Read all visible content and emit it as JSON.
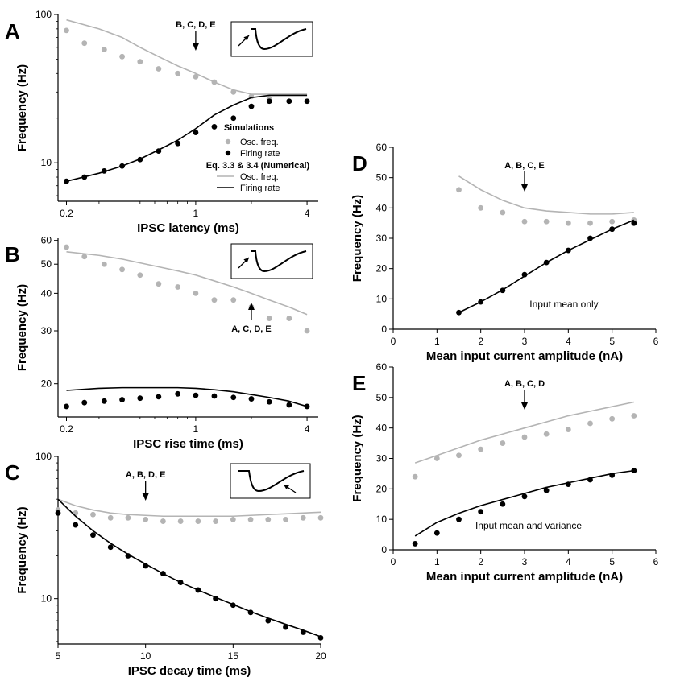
{
  "chart_data": [
    {
      "panel": "A",
      "type": "scatter",
      "xlabel": "IPSC latency (ms)",
      "ylabel": "Frequency (Hz)",
      "xscale": "log",
      "yscale": "log",
      "xlim": [
        0.18,
        4.6
      ],
      "ylim": [
        5.5,
        100
      ],
      "xticks": [
        0.2,
        1,
        4
      ],
      "xtick_labels": [
        "0.2",
        "1",
        "4"
      ],
      "yticks": [
        10,
        100
      ],
      "ytick_labels": [
        "10",
        "100"
      ],
      "annotation": "B, C, D, E",
      "annotation_x": 1.0,
      "inset": "arrow-rise",
      "legend": {
        "position": "lower-right",
        "sim_header": "Simulations",
        "eq_header": "Eq. 3.3 & 3.4 (Numerical)",
        "entries": [
          "Osc. freq.",
          "Firing rate",
          "Osc. freq.",
          "Firing rate"
        ]
      },
      "series": [
        {
          "name": "Osc. freq.",
          "kind": "simulation",
          "color": "#b4b4b4",
          "x": [
            0.2,
            0.25,
            0.32,
            0.4,
            0.5,
            0.63,
            0.8,
            1.0,
            1.26,
            1.6,
            2.0,
            2.5,
            3.2,
            4.0
          ],
          "y": [
            78,
            64,
            58,
            52,
            48,
            43,
            40,
            38,
            35,
            30,
            28,
            27,
            26,
            26
          ]
        },
        {
          "name": "Firing rate",
          "kind": "simulation",
          "color": "#000000",
          "x": [
            0.2,
            0.25,
            0.32,
            0.4,
            0.5,
            0.63,
            0.8,
            1.0,
            1.26,
            1.6,
            2.0,
            2.5,
            3.2,
            4.0
          ],
          "y": [
            7.5,
            8.0,
            8.8,
            9.5,
            10.5,
            12.0,
            13.5,
            16.0,
            17.5,
            20.0,
            24.0,
            26.0,
            26.0,
            26.0
          ]
        },
        {
          "name": "Osc. freq.",
          "kind": "theory",
          "color": "#b4b4b4",
          "x": [
            0.2,
            0.3,
            0.4,
            0.5,
            0.63,
            0.8,
            1.0,
            1.26,
            1.6,
            2.0,
            2.5,
            3.2,
            4.0
          ],
          "y": [
            92,
            80,
            70,
            60,
            52,
            45,
            40,
            35,
            31,
            29,
            29,
            29,
            29
          ]
        },
        {
          "name": "Firing rate",
          "kind": "theory",
          "color": "#000000",
          "x": [
            0.2,
            0.3,
            0.4,
            0.5,
            0.63,
            0.8,
            1.0,
            1.26,
            1.6,
            2.0,
            2.5,
            3.2,
            4.0
          ],
          "y": [
            7.5,
            8.5,
            9.5,
            10.6,
            12.2,
            14.2,
            17.0,
            21.0,
            24.5,
            27.5,
            28.5,
            28.5,
            28.5
          ]
        }
      ]
    },
    {
      "panel": "B",
      "type": "scatter",
      "xlabel": "IPSC rise time (ms)",
      "ylabel": "Frequency (Hz)",
      "xscale": "log",
      "yscale": "log",
      "xlim": [
        0.18,
        4.6
      ],
      "ylim": [
        15.5,
        61
      ],
      "xticks": [
        0.2,
        1,
        4
      ],
      "xtick_labels": [
        "0.2",
        "1",
        "4"
      ],
      "yticks": [
        20,
        30,
        40,
        50,
        60
      ],
      "ytick_labels": [
        "20",
        "30",
        "40",
        "50",
        "60"
      ],
      "annotation": "A, C, D, E",
      "annotation_x": 2.0,
      "inset": "arrow-rise",
      "series": [
        {
          "name": "Osc. freq.",
          "kind": "simulation",
          "color": "#b4b4b4",
          "x": [
            0.2,
            0.25,
            0.32,
            0.4,
            0.5,
            0.63,
            0.8,
            1.0,
            1.26,
            1.6,
            2.0,
            2.5,
            3.2,
            4.0
          ],
          "y": [
            57,
            53,
            50,
            48,
            46,
            43,
            42,
            40,
            38,
            38,
            36,
            33,
            33,
            30
          ]
        },
        {
          "name": "Firing rate",
          "kind": "simulation",
          "color": "#000000",
          "x": [
            0.2,
            0.25,
            0.32,
            0.4,
            0.5,
            0.63,
            0.8,
            1.0,
            1.26,
            1.6,
            2.0,
            2.5,
            3.2,
            4.0
          ],
          "y": [
            16.8,
            17.3,
            17.5,
            17.7,
            17.9,
            18.1,
            18.5,
            18.3,
            18.2,
            18.0,
            17.8,
            17.4,
            17.0,
            16.8
          ]
        },
        {
          "name": "Osc. freq.",
          "kind": "theory",
          "color": "#b4b4b4",
          "x": [
            0.2,
            0.3,
            0.4,
            0.5,
            0.63,
            0.8,
            1.0,
            1.26,
            1.6,
            2.0,
            2.5,
            3.2,
            4.0
          ],
          "y": [
            55,
            53.5,
            52,
            50.5,
            49,
            47.5,
            46,
            44,
            42,
            40,
            38,
            36,
            34
          ]
        },
        {
          "name": "Firing rate",
          "kind": "theory",
          "color": "#000000",
          "x": [
            0.2,
            0.3,
            0.4,
            0.5,
            0.63,
            0.8,
            1.0,
            1.26,
            1.6,
            2.0,
            2.5,
            3.2,
            4.0
          ],
          "y": [
            19.0,
            19.3,
            19.4,
            19.4,
            19.4,
            19.4,
            19.3,
            19.1,
            18.8,
            18.4,
            18.0,
            17.5,
            16.8
          ]
        }
      ]
    },
    {
      "panel": "C",
      "type": "scatter",
      "xlabel": "IPSC decay time (ms)",
      "ylabel": "Frequency (Hz)",
      "xscale": "linear",
      "yscale": "log",
      "xlim": [
        5,
        20
      ],
      "ylim": [
        4.8,
        100
      ],
      "xticks": [
        5,
        10,
        15,
        20
      ],
      "xtick_labels": [
        "5",
        "10",
        "15",
        "20"
      ],
      "yticks": [
        10,
        100
      ],
      "ytick_labels": [
        "10",
        "100"
      ],
      "annotation": "A, B, D, E",
      "annotation_x": 10,
      "inset": "arrow-decay",
      "series": [
        {
          "name": "Osc. freq.",
          "kind": "simulation",
          "color": "#b4b4b4",
          "x": [
            5,
            6,
            7,
            8,
            9,
            10,
            11,
            12,
            13,
            14,
            15,
            16,
            17,
            18,
            19,
            20
          ],
          "y": [
            42,
            40,
            39,
            37,
            37,
            36,
            35,
            35,
            35,
            35,
            36,
            36,
            36,
            36,
            37,
            37
          ]
        },
        {
          "name": "Firing rate",
          "kind": "simulation",
          "color": "#000000",
          "x": [
            5,
            6,
            7,
            8,
            9,
            10,
            11,
            12,
            13,
            14,
            15,
            16,
            17,
            18,
            19,
            20
          ],
          "y": [
            40,
            33,
            28,
            23,
            20,
            17,
            15,
            13,
            11.5,
            10,
            9,
            8,
            7,
            6.3,
            5.8,
            5.3
          ]
        },
        {
          "name": "Osc. freq.",
          "kind": "theory",
          "color": "#b4b4b4",
          "x": [
            5,
            6,
            7,
            8,
            9,
            10,
            11,
            12,
            13,
            14,
            15,
            16,
            17,
            18,
            19,
            20
          ],
          "y": [
            50,
            45,
            42,
            40,
            39,
            38.5,
            38,
            38,
            38,
            38,
            38,
            38.5,
            39,
            39.5,
            40,
            40.5
          ]
        },
        {
          "name": "Firing rate",
          "kind": "theory",
          "color": "#000000",
          "x": [
            5,
            6,
            7,
            8,
            9,
            10,
            11,
            12,
            13,
            14,
            15,
            16,
            17,
            18,
            19,
            20
          ],
          "y": [
            50,
            38,
            30,
            24.5,
            20.5,
            17.5,
            15,
            13,
            11.5,
            10.2,
            9.1,
            8.1,
            7.3,
            6.6,
            6.0,
            5.4
          ]
        }
      ]
    },
    {
      "panel": "D",
      "type": "scatter",
      "xlabel": "Mean input current amplitude (nA)",
      "ylabel": "Frequency (Hz)",
      "xscale": "linear",
      "yscale": "linear",
      "xlim": [
        0,
        6
      ],
      "ylim": [
        0,
        60
      ],
      "xticks": [
        0,
        1,
        2,
        3,
        4,
        5,
        6
      ],
      "xtick_labels": [
        "0",
        "1",
        "2",
        "3",
        "4",
        "5",
        "6"
      ],
      "yticks": [
        0,
        10,
        20,
        30,
        40,
        50,
        60
      ],
      "ytick_labels": [
        "0",
        "10",
        "20",
        "30",
        "40",
        "50",
        "60"
      ],
      "annotation": "A, B, C, E",
      "annotation_x": 3,
      "note": "Input mean only",
      "series": [
        {
          "name": "Osc. freq.",
          "kind": "simulation",
          "color": "#b4b4b4",
          "x": [
            1.5,
            2.0,
            2.5,
            3.0,
            3.5,
            4.0,
            4.5,
            5.0,
            5.5
          ],
          "y": [
            46,
            40,
            38.5,
            35.5,
            35.5,
            35,
            35,
            35.5,
            36
          ]
        },
        {
          "name": "Firing rate",
          "kind": "simulation",
          "color": "#000000",
          "x": [
            1.5,
            2.0,
            2.5,
            3.0,
            3.5,
            4.0,
            4.5,
            5.0,
            5.5
          ],
          "y": [
            5.5,
            9,
            12.8,
            18,
            22,
            26,
            30,
            33,
            35
          ]
        },
        {
          "name": "Osc. freq.",
          "kind": "theory",
          "color": "#b4b4b4",
          "x": [
            1.5,
            2.0,
            2.5,
            3.0,
            3.5,
            4.0,
            4.5,
            5.0,
            5.5
          ],
          "y": [
            50.5,
            46,
            42.5,
            40,
            39,
            38.5,
            38,
            38,
            38.5
          ]
        },
        {
          "name": "Firing rate",
          "kind": "theory",
          "color": "#000000",
          "x": [
            1.5,
            2.0,
            2.5,
            3.0,
            3.5,
            4.0,
            4.5,
            5.0,
            5.5
          ],
          "y": [
            5.5,
            9,
            13,
            17.5,
            22,
            26,
            29.5,
            33,
            36
          ]
        }
      ]
    },
    {
      "panel": "E",
      "type": "scatter",
      "xlabel": "Mean input current amplitude (nA)",
      "ylabel": "Frequency (Hz)",
      "xscale": "linear",
      "yscale": "linear",
      "xlim": [
        0,
        6
      ],
      "ylim": [
        0,
        60
      ],
      "xticks": [
        0,
        1,
        2,
        3,
        4,
        5,
        6
      ],
      "xtick_labels": [
        "0",
        "1",
        "2",
        "3",
        "4",
        "5",
        "6"
      ],
      "yticks": [
        0,
        10,
        20,
        30,
        40,
        50,
        60
      ],
      "ytick_labels": [
        "0",
        "10",
        "20",
        "30",
        "40",
        "50",
        "60"
      ],
      "annotation": "A, B, C, D",
      "annotation_x": 3,
      "note": "Input mean and variance",
      "series": [
        {
          "name": "Osc. freq.",
          "kind": "simulation",
          "color": "#b4b4b4",
          "x": [
            0.5,
            1.0,
            1.5,
            2.0,
            2.5,
            3.0,
            3.5,
            4.0,
            4.5,
            5.0,
            5.5
          ],
          "y": [
            24,
            30,
            31,
            33,
            35,
            37,
            38,
            39.5,
            41.5,
            43,
            44
          ]
        },
        {
          "name": "Firing rate",
          "kind": "simulation",
          "color": "#000000",
          "x": [
            0.5,
            1.0,
            1.5,
            2.0,
            2.5,
            3.0,
            3.5,
            4.0,
            4.5,
            5.0,
            5.5
          ],
          "y": [
            2,
            5.5,
            10,
            12.5,
            15,
            17.5,
            19.5,
            21.5,
            23,
            24.5,
            26
          ]
        },
        {
          "name": "Osc. freq.",
          "kind": "theory",
          "color": "#b4b4b4",
          "x": [
            0.5,
            1.0,
            1.5,
            2.0,
            2.5,
            3.0,
            3.5,
            4.0,
            4.5,
            5.0,
            5.5
          ],
          "y": [
            28.5,
            31,
            33.5,
            36,
            38,
            40,
            42,
            44,
            45.5,
            47,
            48.5
          ]
        },
        {
          "name": "Firing rate",
          "kind": "theory",
          "color": "#000000",
          "x": [
            0.5,
            1.0,
            1.5,
            2.0,
            2.5,
            3.0,
            3.5,
            4.0,
            4.5,
            5.0,
            5.5
          ],
          "y": [
            4.5,
            9,
            12,
            14.5,
            16.5,
            18.5,
            20.5,
            22,
            23.5,
            25,
            26
          ]
        }
      ]
    }
  ]
}
